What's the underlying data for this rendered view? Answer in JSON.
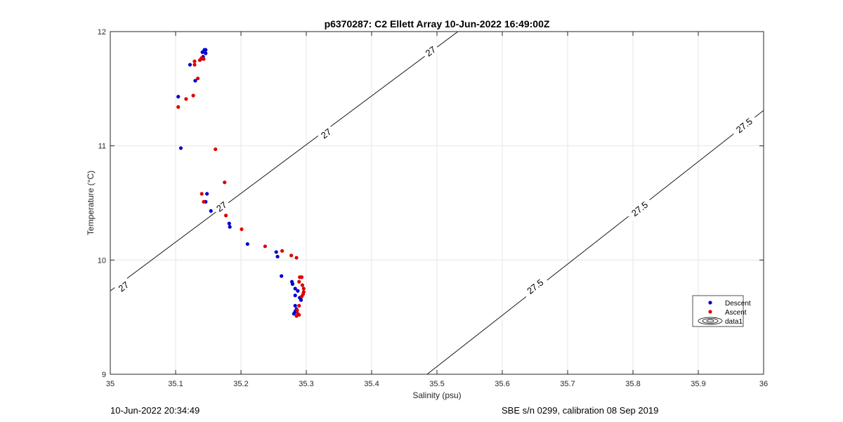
{
  "chart_data": {
    "type": "scatter",
    "title": "p6370287: C2 Ellett Array 10-Jun-2022 16:49:00Z",
    "xlabel": "Salinity (psu)",
    "ylabel": "Temperature (°C)",
    "xlim": [
      35,
      36
    ],
    "ylim": [
      9,
      12
    ],
    "xticks": [
      35,
      35.1,
      35.2,
      35.3,
      35.4,
      35.5,
      35.6,
      35.7,
      35.8,
      35.9,
      36
    ],
    "xtick_labels": [
      "35",
      "35.1",
      "35.2",
      "35.3",
      "35.4",
      "35.5",
      "35.6",
      "35.7",
      "35.8",
      "35.9",
      "36"
    ],
    "yticks": [
      9,
      10,
      11,
      12
    ],
    "ytick_labels": [
      "9",
      "10",
      "11",
      "12"
    ],
    "grid": true,
    "legend_position": "lower-right",
    "legend": [
      "Descent",
      "Ascent",
      "data1"
    ],
    "contours": [
      {
        "level_label": "27",
        "points": [
          [
            35.0,
            9.73
          ],
          [
            35.532,
            12.0
          ]
        ],
        "labels_at": [
          [
            35.02,
            9.77
          ],
          [
            35.17,
            10.47
          ],
          [
            35.33,
            11.11
          ],
          [
            35.49,
            11.83
          ]
        ]
      },
      {
        "level_label": "27.5",
        "points": [
          [
            35.485,
            9.0
          ],
          [
            36.0,
            11.31
          ]
        ],
        "labels_at": [
          [
            35.65,
            9.77
          ],
          [
            35.81,
            10.45
          ],
          [
            35.97,
            11.18
          ]
        ]
      }
    ],
    "series": [
      {
        "name": "Descent",
        "color": "#0000cc",
        "points": [
          [
            35.144,
            11.84
          ],
          [
            35.146,
            11.84
          ],
          [
            35.141,
            11.82
          ],
          [
            35.146,
            11.81
          ],
          [
            35.142,
            11.78
          ],
          [
            35.139,
            11.76
          ],
          [
            35.122,
            11.71
          ],
          [
            35.13,
            11.57
          ],
          [
            35.104,
            11.43
          ],
          [
            35.108,
            10.98
          ],
          [
            35.148,
            10.58
          ],
          [
            35.146,
            10.51
          ],
          [
            35.154,
            10.43
          ],
          [
            35.182,
            10.32
          ],
          [
            35.183,
            10.29
          ],
          [
            35.21,
            10.14
          ],
          [
            35.254,
            10.07
          ],
          [
            35.256,
            10.03
          ],
          [
            35.262,
            9.86
          ],
          [
            35.278,
            9.81
          ],
          [
            35.279,
            9.79
          ],
          [
            35.283,
            9.75
          ],
          [
            35.287,
            9.73
          ],
          [
            35.283,
            9.69
          ],
          [
            35.29,
            9.67
          ],
          [
            35.292,
            9.65
          ],
          [
            35.283,
            9.6
          ],
          [
            35.285,
            9.57
          ],
          [
            35.283,
            9.55
          ],
          [
            35.281,
            9.53
          ]
        ]
      },
      {
        "name": "Ascent",
        "color": "#dd0000",
        "points": [
          [
            35.14,
            11.77
          ],
          [
            35.143,
            11.76
          ],
          [
            35.137,
            11.75
          ],
          [
            35.129,
            11.74
          ],
          [
            35.129,
            11.71
          ],
          [
            35.134,
            11.59
          ],
          [
            35.127,
            11.44
          ],
          [
            35.116,
            11.41
          ],
          [
            35.104,
            11.34
          ],
          [
            35.161,
            10.97
          ],
          [
            35.175,
            10.68
          ],
          [
            35.14,
            10.58
          ],
          [
            35.143,
            10.51
          ],
          [
            35.177,
            10.39
          ],
          [
            35.201,
            10.27
          ],
          [
            35.237,
            10.12
          ],
          [
            35.263,
            10.08
          ],
          [
            35.277,
            10.04
          ],
          [
            35.285,
            10.02
          ],
          [
            35.29,
            9.85
          ],
          [
            35.293,
            9.85
          ],
          [
            35.289,
            9.81
          ],
          [
            35.294,
            9.78
          ],
          [
            35.296,
            9.75
          ],
          [
            35.296,
            9.72
          ],
          [
            35.295,
            9.7
          ],
          [
            35.293,
            9.68
          ],
          [
            35.289,
            9.6
          ],
          [
            35.286,
            9.56
          ],
          [
            35.287,
            9.53
          ],
          [
            35.289,
            9.52
          ],
          [
            35.285,
            9.51
          ]
        ]
      }
    ]
  },
  "footer": {
    "left": "10-Jun-2022 20:34:49",
    "right": "SBE s/n 0299, calibration 08 Sep 2019"
  }
}
